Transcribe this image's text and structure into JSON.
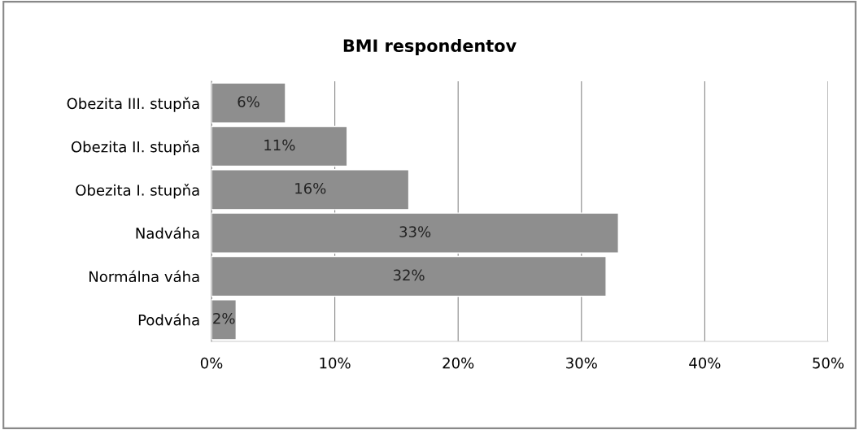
{
  "chart_data": {
    "type": "bar",
    "orientation": "horizontal",
    "title": "BMI respondentov",
    "categories": [
      "Obezita III. stupňa",
      "Obezita II. stupňa",
      "Obezita I. stupňa",
      "Nadváha",
      "Normálna váha",
      "Podváha"
    ],
    "values": [
      6,
      11,
      16,
      33,
      32,
      2
    ],
    "value_labels": [
      "6%",
      "11%",
      "16%",
      "33%",
      "32%",
      "2%"
    ],
    "color": "#8e8e8e",
    "xlim": [
      0,
      50
    ],
    "xticks": [
      {
        "value": 0,
        "label": "0%"
      },
      {
        "value": 10,
        "label": "10%"
      },
      {
        "value": 20,
        "label": "20%"
      },
      {
        "value": 30,
        "label": "30%"
      },
      {
        "value": 40,
        "label": "40%"
      },
      {
        "value": 50,
        "label": "50%"
      }
    ],
    "grid": "x",
    "legend": false
  }
}
